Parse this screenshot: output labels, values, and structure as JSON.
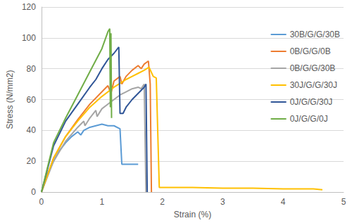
{
  "chart_data": {
    "type": "line",
    "x_label": "Strain (%)",
    "y_label": "Stress (N/mm2)",
    "xlim": [
      0,
      5
    ],
    "xticks": [
      0,
      1,
      2,
      3,
      4,
      5
    ],
    "ylim": [
      0,
      120
    ],
    "yticks": [
      0,
      20,
      40,
      60,
      80,
      100,
      120
    ],
    "grid": true,
    "legend": "right",
    "series": [
      {
        "name": "30B/G/G/30B",
        "color": "#5b9bd5",
        "x": [
          0,
          0.1,
          0.2,
          0.3,
          0.4,
          0.5,
          0.6,
          0.65,
          0.7,
          0.8,
          0.9,
          1.0,
          1.1,
          1.2,
          1.3,
          1.33,
          1.4,
          1.6
        ],
        "values": [
          0,
          12,
          20,
          27,
          32,
          36,
          39,
          37,
          40,
          42,
          43,
          44,
          43,
          43,
          41,
          18,
          18,
          18
        ]
      },
      {
        "name": "0B/G/G/0B",
        "color": "#ed7d31",
        "x": [
          0,
          0.2,
          0.4,
          0.6,
          0.8,
          1.0,
          1.1,
          1.15,
          1.2,
          1.3,
          1.33,
          1.4,
          1.5,
          1.6,
          1.65,
          1.7,
          1.77,
          1.8,
          1.82
        ],
        "values": [
          0,
          22,
          36,
          47,
          57,
          65,
          69,
          64,
          72,
          75,
          70,
          75,
          79,
          82,
          80,
          83,
          85,
          70,
          0
        ]
      },
      {
        "name": "0B/G/G/30B",
        "color": "#a5a5a5",
        "x": [
          0,
          0.2,
          0.4,
          0.6,
          0.7,
          0.72,
          0.8,
          0.9,
          0.92,
          1.0,
          1.1,
          1.2,
          1.3,
          1.4,
          1.5,
          1.6,
          1.65,
          1.7,
          1.73
        ],
        "values": [
          0,
          20,
          33,
          42,
          46,
          43,
          48,
          53,
          49,
          54,
          57,
          60,
          63,
          65,
          67,
          68,
          67,
          70,
          0
        ]
      },
      {
        "name": "30J/G/G/30J",
        "color": "#ffc000",
        "x": [
          0,
          0.2,
          0.4,
          0.6,
          0.8,
          1.0,
          1.2,
          1.4,
          1.5,
          1.6,
          1.7,
          1.78,
          1.85,
          1.9,
          1.95,
          2.5,
          3.0,
          3.5,
          4.0,
          4.5,
          4.65
        ],
        "values": [
          0,
          22,
          36,
          46,
          55,
          62,
          68,
          73,
          75,
          77,
          79,
          81,
          75,
          74,
          3,
          3,
          2.5,
          2.5,
          2,
          2,
          1.5
        ]
      },
      {
        "name": "0J/G/G/30J",
        "color": "#2f5597",
        "x": [
          0,
          0.2,
          0.4,
          0.6,
          0.8,
          0.9,
          1.0,
          1.1,
          1.2,
          1.28,
          1.3,
          1.35,
          1.4,
          1.5,
          1.6,
          1.7,
          1.73,
          1.75
        ],
        "values": [
          0,
          30,
          46,
          57,
          68,
          73,
          80,
          86,
          90,
          94,
          51,
          51,
          55,
          60,
          64,
          68,
          70,
          0
        ]
      },
      {
        "name": "0J/G/G/0J",
        "color": "#70ad47",
        "x": [
          0,
          0.2,
          0.4,
          0.6,
          0.8,
          1.0,
          1.1,
          1.13,
          1.14,
          1.15,
          1.16
        ],
        "values": [
          0,
          32,
          48,
          63,
          78,
          93,
          104,
          106,
          55,
          103,
          48
        ]
      }
    ]
  }
}
